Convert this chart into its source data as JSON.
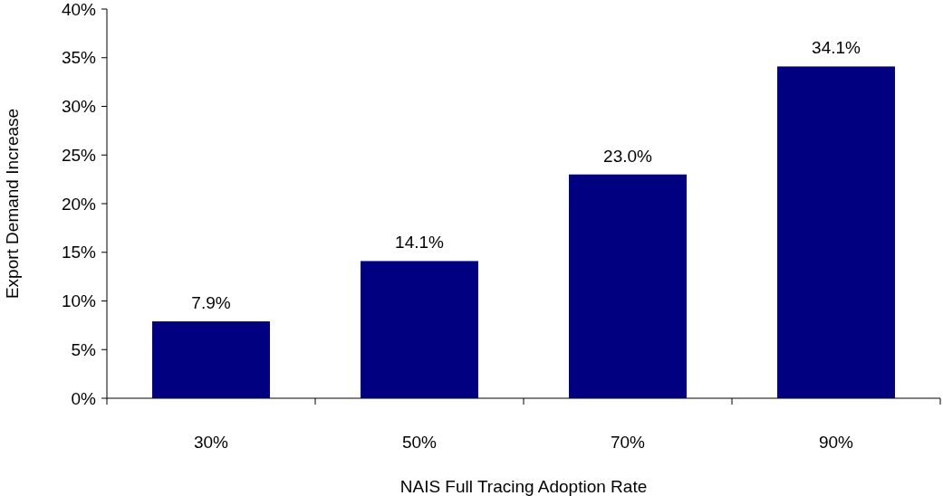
{
  "chart_data": {
    "type": "bar",
    "xlabel": "NAIS Full Tracing Adoption Rate",
    "ylabel": "Export Demand Increase",
    "categories": [
      "30%",
      "50%",
      "70%",
      "90%"
    ],
    "values": [
      7.9,
      14.1,
      23.0,
      34.1
    ],
    "value_labels": [
      "7.9%",
      "14.1%",
      "23.0%",
      "34.1%"
    ],
    "color": "#000080",
    "ylim": [
      0,
      40
    ],
    "yticks": [
      {
        "value": 0,
        "label": "0%"
      },
      {
        "value": 5,
        "label": "5%"
      },
      {
        "value": 10,
        "label": "10%"
      },
      {
        "value": 15,
        "label": "15%"
      },
      {
        "value": 20,
        "label": "20%"
      },
      {
        "value": 25,
        "label": "25%"
      },
      {
        "value": 30,
        "label": "30%"
      },
      {
        "value": 35,
        "label": "35%"
      },
      {
        "value": 40,
        "label": "40%"
      }
    ],
    "grid": false
  }
}
